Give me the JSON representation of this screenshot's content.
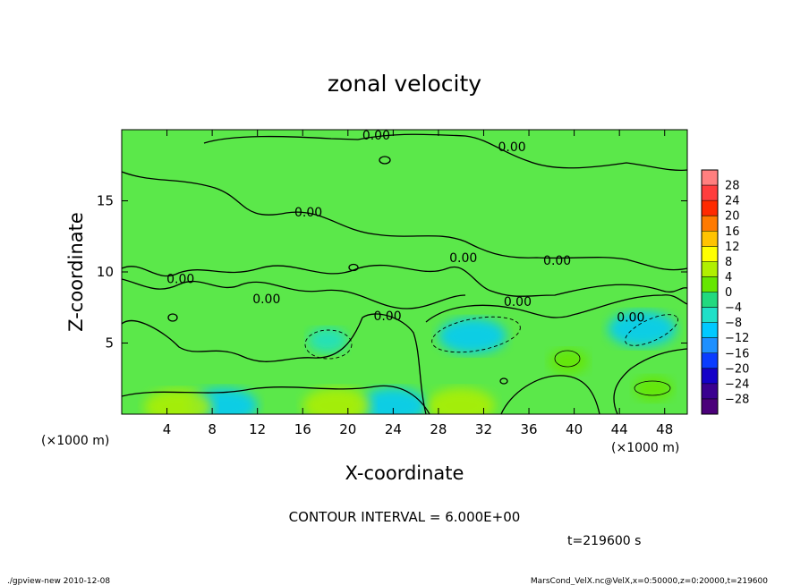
{
  "chart_data": {
    "type": "heatmap",
    "title": "zonal velocity",
    "xlabel": "X-coordinate",
    "ylabel": "Z-coordinate",
    "x_unit_label": "(×1000 m)",
    "y_unit_label": "(×1000 m)",
    "xlim": [
      0,
      50
    ],
    "ylim": [
      0,
      20
    ],
    "x_ticks": [
      4,
      8,
      12,
      16,
      20,
      24,
      28,
      32,
      36,
      40,
      44,
      48
    ],
    "y_ticks": [
      5,
      10,
      15
    ],
    "contour_labels": [
      {
        "text": "0.00",
        "x": 22.5,
        "z": 19.3
      },
      {
        "text": "0.00",
        "x": 34.5,
        "z": 18.5
      },
      {
        "text": "0.00",
        "x": 16.5,
        "z": 13.9
      },
      {
        "text": "0.00",
        "x": 30.2,
        "z": 10.7
      },
      {
        "text": "0.00",
        "x": 38.5,
        "z": 10.5
      },
      {
        "text": "0.00",
        "x": 5.2,
        "z": 9.2
      },
      {
        "text": "0.00",
        "x": 12.8,
        "z": 7.8
      },
      {
        "text": "0.00",
        "x": 35.0,
        "z": 7.6
      },
      {
        "text": "0.00",
        "x": 23.5,
        "z": 6.6
      },
      {
        "text": "0.00",
        "x": 45.0,
        "z": 6.5
      }
    ],
    "features": [
      {
        "sign": "negative",
        "x": 31,
        "z": 5.5,
        "magnitude": -8
      },
      {
        "sign": "negative",
        "x": 46,
        "z": 6.0,
        "magnitude": -8
      },
      {
        "sign": "negative",
        "x": 18.2,
        "z": 5.2,
        "magnitude": -4
      },
      {
        "sign": "negative",
        "x": 24,
        "z": 0.6,
        "magnitude": -8
      },
      {
        "sign": "negative",
        "x": 9,
        "z": 0.6,
        "magnitude": -8
      },
      {
        "sign": "positive",
        "x": 19,
        "z": 0.6,
        "magnitude": 8
      },
      {
        "sign": "positive",
        "x": 30,
        "z": 0.6,
        "magnitude": 8
      },
      {
        "sign": "positive",
        "x": 5,
        "z": 0.5,
        "magnitude": 8
      },
      {
        "sign": "positive",
        "x": 39.5,
        "z": 3.7,
        "magnitude": 4
      },
      {
        "sign": "positive",
        "x": 47,
        "z": 1.8,
        "magnitude": 4
      }
    ],
    "colorbar": {
      "levels": [
        "28",
        "24",
        "20",
        "16",
        "12",
        "8",
        "4",
        "0",
        "−4",
        "−8",
        "−12",
        "−16",
        "−20",
        "−24",
        "−28"
      ],
      "colors": [
        "#ff7f7f",
        "#ff3d3d",
        "#ff2a00",
        "#ff7a00",
        "#ffc300",
        "#ffff00",
        "#b0ef00",
        "#66e600",
        "#22d97f",
        "#1fe0c8",
        "#00c9ff",
        "#1e90ff",
        "#0a3cff",
        "#1400c8",
        "#3a0090",
        "#4b007a"
      ]
    },
    "background_color": "#5be84a",
    "annotation": "CONTOUR INTERVAL = 6.000E+00",
    "time": "t=219600 s"
  },
  "footer": {
    "left": "./gpview-new  2010-12-08",
    "right": "MarsCond_VelX.nc@VelX,x=0:50000,z=0:20000,t=219600"
  }
}
